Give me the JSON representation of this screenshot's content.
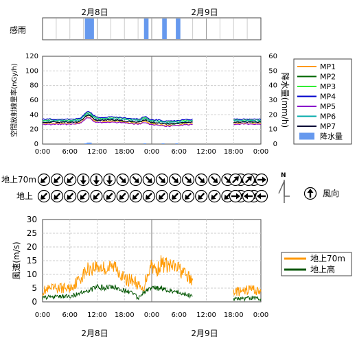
{
  "dates": {
    "day1": "2月8日",
    "day2": "2月9日"
  },
  "rain_panel": {
    "label": "感雨"
  },
  "time_ticks": [
    "0:00",
    "6:00",
    "12:00",
    "18:00",
    "0:00",
    "6:00",
    "12:00",
    "18:00",
    "0:00"
  ],
  "wind_dir_panel": {
    "row1_label": "地上70m",
    "row2_label": "地上",
    "legend_label": "風向"
  },
  "legend1": [
    "MP1",
    "MP2",
    "MP3",
    "MP4",
    "MP5",
    "MP6",
    "MP7",
    "降水量"
  ],
  "legend2": [
    "地上70m",
    "地上高"
  ],
  "colors": {
    "MP1": "#ff9900",
    "MP2": "#006600",
    "MP3": "#33ee33",
    "MP4": "#0000cc",
    "MP5": "#8800cc",
    "MP6": "#00aaaa",
    "MP7": "#000033",
    "rain": "#6699ee",
    "wind70": "#ff9900",
    "windGround": "#005500"
  },
  "chart_data": [
    {
      "type": "bar",
      "name": "rain_sensor",
      "x_hours": [
        0,
        48
      ],
      "on_intervals_hours": [
        [
          9.3,
          11.3
        ],
        [
          22.3,
          23.3
        ],
        [
          26.3,
          27.3
        ],
        [
          29.3,
          30.3
        ]
      ]
    },
    {
      "type": "line",
      "ylabel": "空間放射線量率(nGy/h)",
      "y2label": "降水量(mm/h)",
      "ylim": [
        0,
        120
      ],
      "y2lim": [
        0,
        60
      ],
      "yticks": [
        0,
        20,
        40,
        60,
        80,
        100,
        120
      ],
      "y2ticks": [
        0,
        10,
        20,
        30,
        40,
        50,
        60
      ],
      "x_hours": [
        0,
        48
      ],
      "gap_hours": [
        33,
        42
      ],
      "series": [
        {
          "name": "MP1",
          "base": 28,
          "bump": 8
        },
        {
          "name": "MP2",
          "base": 30,
          "bump": 9
        },
        {
          "name": "MP3",
          "base": 33,
          "bump": 9
        },
        {
          "name": "MP4",
          "base": 34,
          "bump": 10
        },
        {
          "name": "MP5",
          "base": 27,
          "bump": 8
        },
        {
          "name": "MP6",
          "base": 32,
          "bump": 9
        },
        {
          "name": "MP7",
          "base": 30,
          "bump": 9
        },
        {
          "name": "降水量",
          "base": 0,
          "bump": 0
        }
      ],
      "rain_mm": [
        [
          9.5,
          0.5
        ],
        [
          10,
          1
        ],
        [
          10.5,
          1
        ],
        [
          22.5,
          0.5
        ],
        [
          26.5,
          0.5
        ],
        [
          29.5,
          0.5
        ]
      ]
    },
    {
      "type": "direction",
      "row1_arrows_deg": [
        225,
        225,
        225,
        180,
        180,
        180,
        135,
        135,
        135,
        135,
        135,
        135,
        135,
        135,
        135,
        135,
        135,
        45,
        45,
        90
      ],
      "row2_arrows_deg": [
        225,
        225,
        225,
        225,
        225,
        225,
        225,
        225,
        225,
        225,
        225,
        225,
        225,
        225,
        225,
        225,
        225,
        90,
        270,
        270
      ],
      "legend_arrow_deg": 0
    },
    {
      "type": "line",
      "ylabel": "風速(m/s)",
      "ylim": [
        0,
        30
      ],
      "yticks": [
        0,
        5,
        10,
        15,
        20,
        25,
        30
      ],
      "x_hours": [
        0,
        48
      ],
      "gap_hours": [
        33,
        42
      ],
      "series": [
        {
          "name": "地上70m"
        },
        {
          "name": "地上高"
        }
      ],
      "profile_wind70": [
        [
          0,
          4
        ],
        [
          3,
          5
        ],
        [
          6,
          5
        ],
        [
          8,
          8
        ],
        [
          10,
          12
        ],
        [
          12,
          13
        ],
        [
          14,
          12
        ],
        [
          16,
          13
        ],
        [
          17,
          11
        ],
        [
          18,
          8
        ],
        [
          20,
          8
        ],
        [
          22,
          4
        ],
        [
          23,
          10
        ],
        [
          24,
          14
        ],
        [
          25,
          11
        ],
        [
          26,
          14
        ],
        [
          28,
          13
        ],
        [
          30,
          12
        ],
        [
          32,
          9
        ],
        [
          33,
          7
        ],
        [
          42,
          4
        ],
        [
          44,
          3.5
        ],
        [
          46,
          5
        ],
        [
          47,
          4
        ],
        [
          48,
          4
        ]
      ],
      "profile_windG": [
        [
          0,
          1.5
        ],
        [
          3,
          2
        ],
        [
          6,
          2
        ],
        [
          8,
          3
        ],
        [
          10,
          4
        ],
        [
          12,
          5.5
        ],
        [
          14,
          5
        ],
        [
          16,
          5.5
        ],
        [
          18,
          4
        ],
        [
          20,
          3.5
        ],
        [
          21,
          1
        ],
        [
          22,
          3
        ],
        [
          24,
          5
        ],
        [
          26,
          5
        ],
        [
          28,
          4
        ],
        [
          30,
          3.5
        ],
        [
          32,
          2.5
        ],
        [
          33,
          2
        ],
        [
          42,
          1
        ],
        [
          44,
          1
        ],
        [
          46,
          1.5
        ],
        [
          48,
          1.2
        ]
      ]
    }
  ]
}
